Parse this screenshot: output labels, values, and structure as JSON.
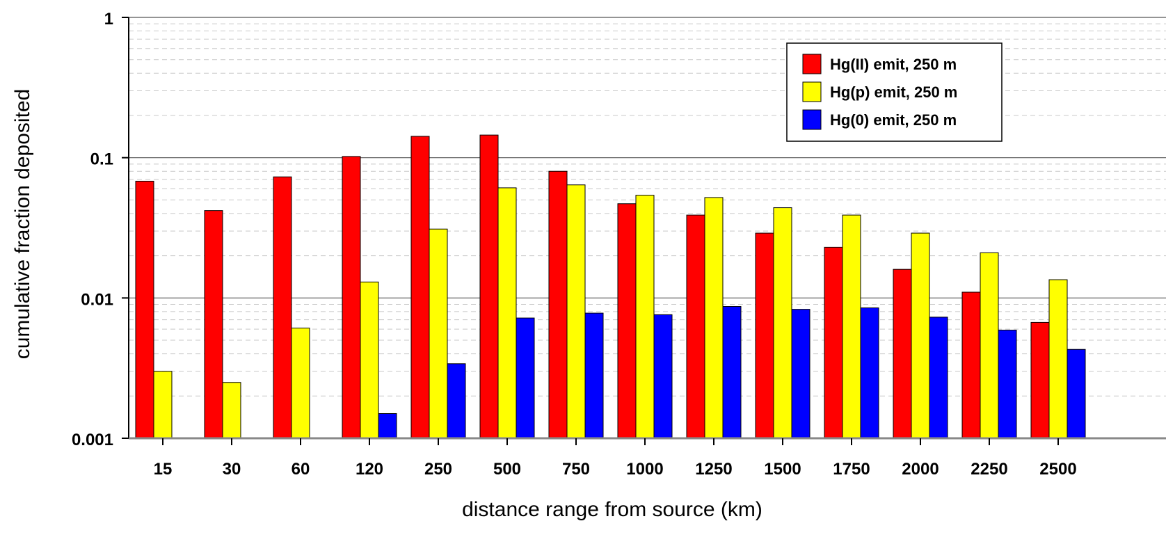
{
  "chart_data": {
    "type": "bar",
    "yscale": "log",
    "ylim": [
      0.001,
      1
    ],
    "ytick_labels": [
      "0.001",
      "0.01",
      "0.1",
      "1"
    ],
    "ytick_values": [
      0.001,
      0.01,
      0.1,
      1
    ],
    "xlabel": "distance range from source (km)",
    "ylabel": "cumulative fraction deposited",
    "categories": [
      "15",
      "30",
      "60",
      "120",
      "250",
      "500",
      "750",
      "1000",
      "1250",
      "1500",
      "1750",
      "2000",
      "2250",
      "2500"
    ],
    "legend_position": "top-right",
    "grid": true,
    "series": [
      {
        "name": "Hg(II) emit, 250 m",
        "color": "#ff0000",
        "values": [
          0.068,
          0.042,
          0.073,
          0.102,
          0.142,
          0.145,
          0.08,
          0.047,
          0.039,
          0.029,
          0.023,
          0.016,
          0.011,
          0.0067
        ]
      },
      {
        "name": "Hg(p) emit, 250 m",
        "color": "#ffff00",
        "values": [
          0.003,
          0.0025,
          0.0061,
          0.013,
          0.031,
          0.061,
          0.064,
          0.054,
          0.052,
          0.044,
          0.039,
          0.029,
          0.021,
          0.0135
        ]
      },
      {
        "name": "Hg(0) emit, 250 m",
        "color": "#0000ff",
        "values": [
          0.001,
          0.001,
          0.001,
          0.0015,
          0.0034,
          0.0072,
          0.0078,
          0.0076,
          0.0087,
          0.0083,
          0.0085,
          0.0073,
          0.0059,
          0.0043
        ]
      }
    ]
  }
}
